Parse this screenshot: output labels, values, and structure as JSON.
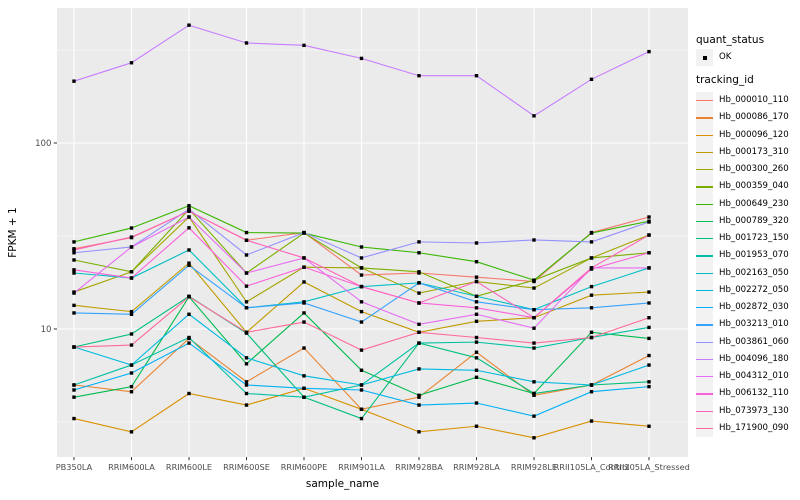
{
  "figure": {
    "background": "#FFFFFF",
    "panel_background": "#EBEBEB",
    "grid_color": "#FFFFFF",
    "tick_color": "#333333",
    "tick_label_color": "#4D4D4D",
    "point_color": "#000000"
  },
  "chart_data": {
    "type": "line",
    "title": "",
    "xlabel": "sample_name",
    "ylabel": "FPKM + 1",
    "y_scale": "log10",
    "y_ticks": [
      10,
      100
    ],
    "y_minor_ticks": [
      3.162,
      31.62,
      316.2
    ],
    "ylim": [
      2.05,
      530
    ],
    "grid": true,
    "legend_position": "right",
    "point_marker": "filled-square",
    "categories": [
      "PB350LA",
      "RRIM600LA",
      "RRIM600LE",
      "RRIM600SE",
      "RRIM600PE",
      "RRIM901LA",
      "RRIM928BA",
      "RRIM928LA",
      "RRIM928LE",
      "RRII105LA_Control",
      "RRII105LA_Stressed"
    ],
    "series": [
      {
        "name": "Hb_000010_110",
        "color": "#F8766D",
        "values": [
          27,
          31,
          43,
          30,
          33,
          19.5,
          20,
          19,
          18,
          33,
          40
        ]
      },
      {
        "name": "Hb_000086_170",
        "color": "#EA8331",
        "values": [
          5.0,
          4.6,
          8.9,
          5.2,
          7.9,
          3.7,
          4.3,
          7.5,
          4.4,
          5.0,
          7.2
        ]
      },
      {
        "name": "Hb_000096_120",
        "color": "#D89000",
        "values": [
          3.3,
          2.8,
          4.5,
          3.9,
          4.8,
          3.7,
          2.8,
          3.0,
          2.6,
          3.2,
          3.0
        ]
      },
      {
        "name": "Hb_000173_310",
        "color": "#C09B00",
        "values": [
          13.4,
          12.4,
          22.6,
          9.6,
          17.9,
          12.4,
          9.6,
          11.0,
          11.5,
          15.2,
          15.8
        ]
      },
      {
        "name": "Hb_000300_260",
        "color": "#A3A500",
        "values": [
          15.8,
          20.3,
          40,
          14,
          21.5,
          21.3,
          15.6,
          18,
          16.6,
          24.1,
          32
        ]
      },
      {
        "name": "Hb_000359_040",
        "color": "#7CAE00",
        "values": [
          23.5,
          20.3,
          44,
          20,
          32.8,
          21.3,
          20.3,
          15,
          18.3,
          24.1,
          25.7
        ]
      },
      {
        "name": "Hb_000649_230",
        "color": "#39B600",
        "values": [
          29.4,
          34.9,
          46,
          33,
          32.8,
          27.6,
          25.7,
          23,
          18.3,
          32.8,
          38
        ]
      },
      {
        "name": "Hb_000789_320",
        "color": "#00BB4E",
        "values": [
          4.3,
          4.9,
          14.9,
          6.5,
          12.2,
          6.0,
          4.4,
          5.5,
          4.5,
          9.6,
          8.9
        ]
      },
      {
        "name": "Hb_001723_150",
        "color": "#00BF7D",
        "values": [
          8.0,
          9.4,
          15,
          9.5,
          4.3,
          3.3,
          8.4,
          7.0,
          4.5,
          5.0,
          5.2
        ]
      },
      {
        "name": "Hb_001953_070",
        "color": "#00C1A3",
        "values": [
          5.0,
          6.4,
          9.0,
          4.5,
          4.3,
          5.0,
          8.4,
          8.5,
          7.9,
          9.0,
          10.2
        ]
      },
      {
        "name": "Hb_002163_050",
        "color": "#00BFC4",
        "values": [
          20.0,
          18.8,
          26.6,
          13,
          14,
          16.9,
          17.7,
          15,
          12.7,
          16.9,
          21.3
        ]
      },
      {
        "name": "Hb_002272_050",
        "color": "#00BAE0",
        "values": [
          8.0,
          6.4,
          12,
          7.0,
          5.6,
          5.0,
          6.1,
          6.0,
          5.2,
          5.0,
          6.4
        ]
      },
      {
        "name": "Hb_002872_030",
        "color": "#00B0F6",
        "values": [
          4.7,
          5.8,
          8.4,
          5.0,
          4.8,
          4.7,
          3.9,
          4.0,
          3.4,
          4.6,
          4.9
        ]
      },
      {
        "name": "Hb_003213_010",
        "color": "#35A2FF",
        "values": [
          12.2,
          12.0,
          22,
          13,
          13.8,
          10.9,
          17.7,
          14,
          12.7,
          13,
          13.8
        ]
      },
      {
        "name": "Hb_003861_060",
        "color": "#9590FF",
        "values": [
          25.7,
          27.6,
          44,
          25,
          33,
          24.1,
          29.4,
          29,
          30.1,
          29.4,
          37.6
        ]
      },
      {
        "name": "Hb_004096_180",
        "color": "#C77CFF",
        "values": [
          215,
          270,
          430,
          345,
          335,
          285,
          230,
          230,
          140,
          220,
          310
        ]
      },
      {
        "name": "Hb_004312_010",
        "color": "#E76BF3",
        "values": [
          15.6,
          27.6,
          40,
          20,
          24.1,
          14.0,
          10.6,
          12,
          10.1,
          21.3,
          21.3
        ]
      },
      {
        "name": "Hb_006132_110",
        "color": "#FA62DB",
        "values": [
          20.8,
          18.8,
          35,
          17,
          21.5,
          16.9,
          13.8,
          13,
          11.5,
          21,
          25.7
        ]
      },
      {
        "name": "Hb_073973_130",
        "color": "#FF62BC",
        "values": [
          26.6,
          31.2,
          43,
          30,
          24.1,
          16.9,
          13.8,
          18,
          11.5,
          21.3,
          32
        ]
      },
      {
        "name": "Hb_171900_090",
        "color": "#FF6A98",
        "values": [
          8.0,
          8.2,
          14.9,
          9.6,
          10.9,
          7.7,
          9.6,
          9.0,
          8.4,
          9.0,
          11.5
        ]
      }
    ]
  },
  "legend": {
    "quant_status_title": "quant_status",
    "quant_status_items": [
      {
        "label": "OK",
        "marker": "filled-square"
      }
    ],
    "tracking_title": "tracking_id"
  }
}
